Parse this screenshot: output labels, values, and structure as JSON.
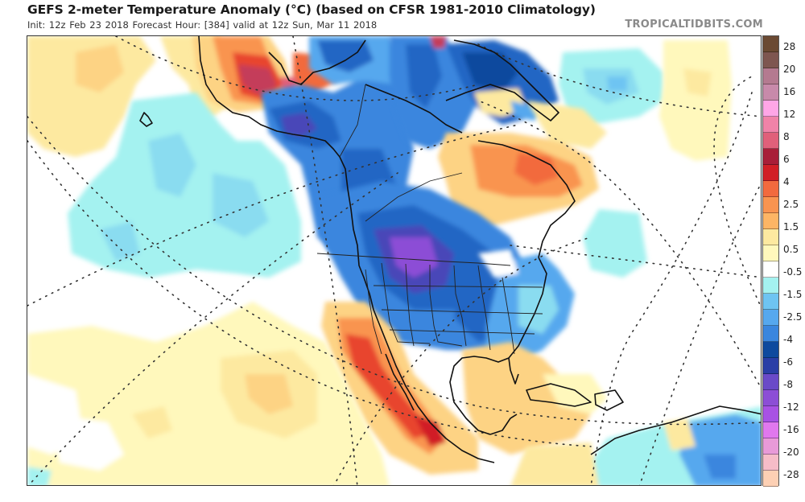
{
  "header": {
    "title": "GEFS 2-meter Temperature Anomaly (°C) (based on CFSR 1981-2010 Climatology)",
    "subtitle": "Init: 12z Feb 23 2018   Forecast Hour: [384]   valid at 12z Sun, Mar 11 2018",
    "brand": "TROPICALTIDBITS.COM"
  },
  "map": {
    "model": "GEFS",
    "variable": "2-meter Temperature Anomaly",
    "units": "°C",
    "climatology": "CFSR 1981-2010",
    "init": "12z Feb 23 2018",
    "forecast_hour": 384,
    "valid": "12z Sun, Mar 11 2018",
    "region": "North America",
    "features": [
      {
        "name": "northwest-canada-cold",
        "anomaly": "cold",
        "range": "-4 to -8"
      },
      {
        "name": "northern-plains-cold-core",
        "anomaly": "cold",
        "range": "-8 to -12"
      },
      {
        "name": "eastern-us-cold",
        "anomaly": "cold",
        "range": "-1.5 to -4"
      },
      {
        "name": "greenland-cold",
        "anomaly": "cold",
        "range": "-2.5 to -6"
      },
      {
        "name": "eastern-siberia-warm",
        "anomaly": "warm",
        "range": "4 to 12"
      },
      {
        "name": "quebec-labrador-warm",
        "anomaly": "warm",
        "range": "1.5 to 4"
      },
      {
        "name": "southwest-us-mexico-warm",
        "anomaly": "warm",
        "range": "2.5 to 6"
      },
      {
        "name": "gulf-of-mexico-warm",
        "anomaly": "warm",
        "range": "0.5 to 1.5"
      },
      {
        "name": "north-pacific-cool",
        "anomaly": "cool",
        "range": "-0.5 to -1.5"
      },
      {
        "name": "south-america-north-cool",
        "anomaly": "cool",
        "range": "-0.5 to -4"
      }
    ]
  },
  "colorbar": {
    "cells": [
      "#6b4a33",
      "#7e5650",
      "#9a6a70",
      "#b47a90",
      "#c88aaa",
      "#dda0c8",
      "#ffa6e6",
      "#f083a8",
      "#e0607a",
      "#c43c5a",
      "#a81e38",
      "#d11f26",
      "#e8452e",
      "#f26a3e",
      "#f99450",
      "#fdb565",
      "#fdd384",
      "#fde9a0",
      "#fff8bc",
      "#ffffff",
      "#ffffff",
      "#a4f2f0",
      "#8adcf0",
      "#6ec4f2",
      "#56a8ee",
      "#3a86de",
      "#2466c4",
      "#0e4a9e",
      "#2a3ea6",
      "#4a46b8",
      "#6a4ac8",
      "#8c4ed6",
      "#a852e4",
      "#c862ee",
      "#e078ee",
      "#e89ad8",
      "#eeb0d6",
      "#f6bcc8",
      "#fdd0b4"
    ],
    "labels": [
      "28",
      "20",
      "16",
      "12",
      "8",
      "6",
      "4",
      "2.5",
      "1.5",
      "0.5",
      "-0.5",
      "-1.5",
      "-2.5",
      "-4",
      "-6",
      "-8",
      "-12",
      "-16",
      "-20",
      "-28"
    ]
  }
}
